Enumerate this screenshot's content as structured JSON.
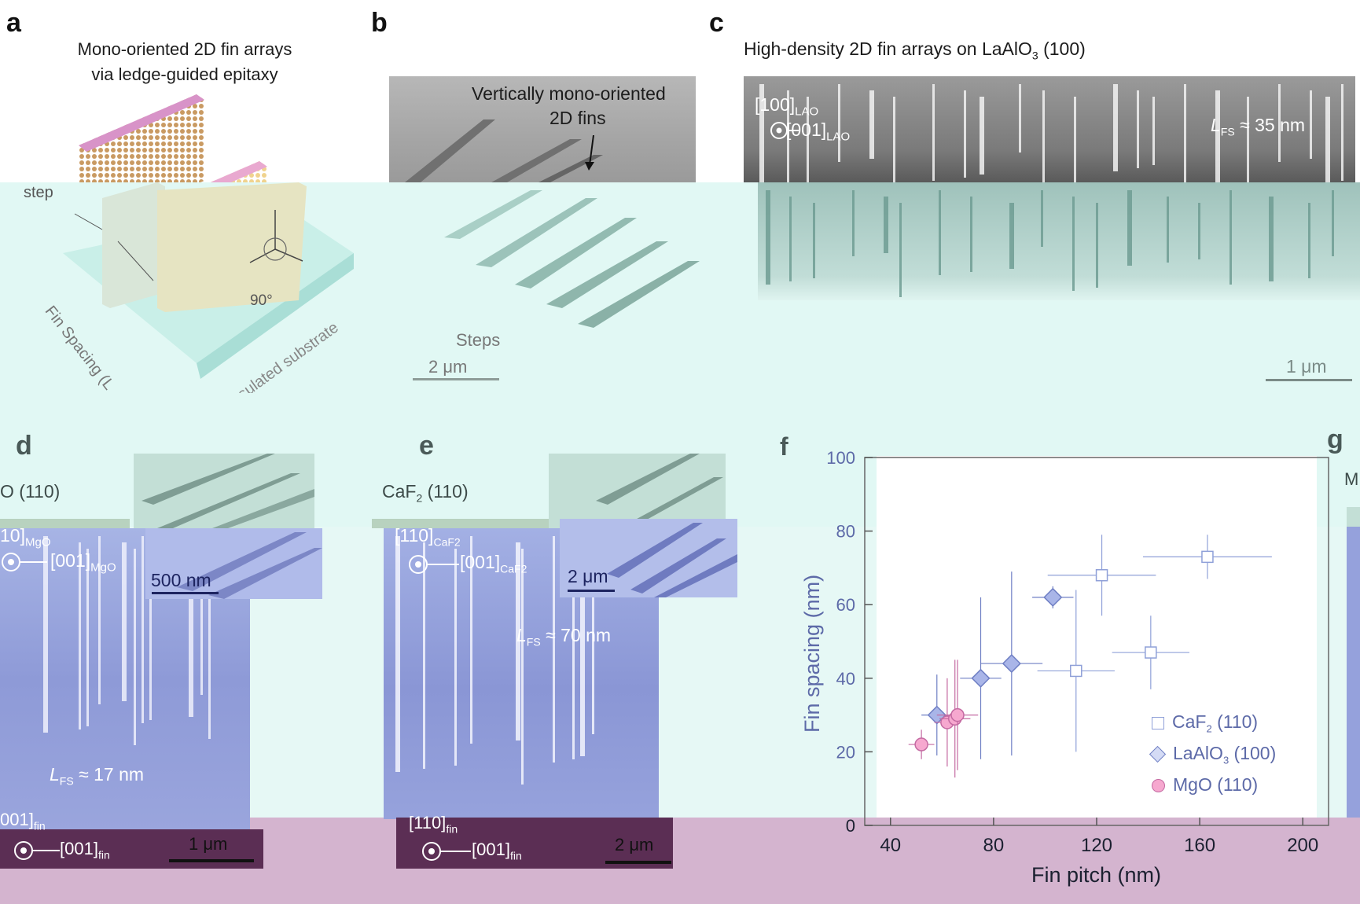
{
  "panels": {
    "a": {
      "label": "a",
      "title_line1": "Mono-oriented 2D fin arrays",
      "title_line2": "via ledge-guided epitaxy",
      "step_label": "step",
      "fin_spacing_label": "Fin Spacing (L",
      "angle_label": "90°",
      "substrate_label": "Insulated substrate"
    },
    "b": {
      "label": "b",
      "annotation_line1": "Vertically mono-oriented",
      "annotation_line2": "2D fins",
      "steps_label": "Steps",
      "scale_bar": "2 μm"
    },
    "c": {
      "label": "c",
      "title": "High-density 2D fin arrays on LaAlO",
      "title_sub": "3",
      "title_tail": " (100)",
      "dir1": "[100]",
      "dir1_sub": "LAO",
      "dir2": "[001]",
      "dir2_sub": "LAO",
      "lfs_label": "L",
      "lfs_sub": "FS",
      "lfs_value": " ≈ 35 nm",
      "scale_bar": "1 μm"
    },
    "d": {
      "label": "d",
      "substrate_title": "O (110)",
      "dir1": "10]",
      "dir1_sub": "MgO",
      "dir2": "[001]",
      "dir2_sub": "MgO",
      "inset_scale": "500 nm",
      "lfs_label": "L",
      "lfs_sub": "FS",
      "lfs_value": " ≈ 17 nm",
      "fin_dir1": "001]",
      "fin_dir1_sub": "fin",
      "fin_dir2": "[001]",
      "fin_dir2_sub": "fin",
      "scale_bar": "1 μm"
    },
    "e": {
      "label": "e",
      "substrate_title": "CaF",
      "substrate_sub": "2",
      "substrate_tail": " (110)",
      "dir1": "[110]",
      "dir1_sub": "CaF2",
      "dir2": "[001]",
      "dir2_sub": "CaF2",
      "inset_scale": "2 μm",
      "lfs_label": "L",
      "lfs_sub": "FS",
      "lfs_value": " ≈ 70 nm",
      "fin_dir1": "[110]",
      "fin_dir1_sub": "fin",
      "fin_dir2": "[001]",
      "fin_dir2_sub": "fin",
      "scale_bar": "2 μm"
    },
    "f": {
      "label": "f"
    },
    "g": {
      "label": "g",
      "fragment": "M"
    }
  },
  "chart_data": {
    "type": "scatter",
    "xlabel": "Fin pitch (nm)",
    "ylabel": "Fin spacing (nm)",
    "xlim": [
      30,
      210
    ],
    "ylim": [
      0,
      100
    ],
    "xticks": [
      40,
      80,
      120,
      160,
      200
    ],
    "yticks": [
      0,
      20,
      40,
      60,
      80,
      100
    ],
    "grid": false,
    "legend_position": "bottom-right",
    "series": [
      {
        "name": "CaF2 (110)",
        "label": "CaF",
        "label_sub": "2",
        "label_tail": " (110)",
        "marker": "square",
        "color": "#8fa0d8",
        "fill": "#ffffff",
        "points": [
          {
            "x": 122,
            "y": 68,
            "xerr": 21,
            "yerr": 11
          },
          {
            "x": 163,
            "y": 73,
            "xerr": 25,
            "yerr": 6
          },
          {
            "x": 141,
            "y": 47,
            "xerr": 15,
            "yerr": 10
          },
          {
            "x": 112,
            "y": 42,
            "xerr": 15,
            "yerr": 22
          }
        ]
      },
      {
        "name": "LaAlO3 (100)",
        "label": "LaAlO",
        "label_sub": "3",
        "label_tail": " (100)",
        "marker": "diamond",
        "color": "#6f7fc4",
        "fill": "#a9b5e8",
        "points": [
          {
            "x": 103,
            "y": 62,
            "xerr": 8,
            "yerr": 3
          },
          {
            "x": 87,
            "y": 44,
            "xerr": 12,
            "yerr": 25
          },
          {
            "x": 75,
            "y": 40,
            "xerr": 8,
            "yerr": 22
          },
          {
            "x": 58,
            "y": 30,
            "xerr": 6,
            "yerr": 11
          }
        ]
      },
      {
        "name": "MgO (110)",
        "label": "MgO",
        "label_sub": "",
        "label_tail": " (110)",
        "marker": "circle",
        "color": "#c46aa2",
        "fill": "#f6a8cf",
        "points": [
          {
            "x": 52,
            "y": 22,
            "xerr": 5,
            "yerr": 4
          },
          {
            "x": 62,
            "y": 28,
            "xerr": 5,
            "yerr": 12
          },
          {
            "x": 65,
            "y": 29,
            "xerr": 6,
            "yerr": 16
          },
          {
            "x": 66,
            "y": 30,
            "xerr": 8,
            "yerr": 15
          }
        ]
      }
    ]
  },
  "colors": {
    "mint_overlay": "#dff7f3",
    "violet_overlay": "#aab6e8",
    "mauve_band": "#d3b3cf",
    "sem_gray": "#8e8e8e",
    "fin_tan": "#c8a070",
    "fin_pink": "#e38ab6"
  }
}
